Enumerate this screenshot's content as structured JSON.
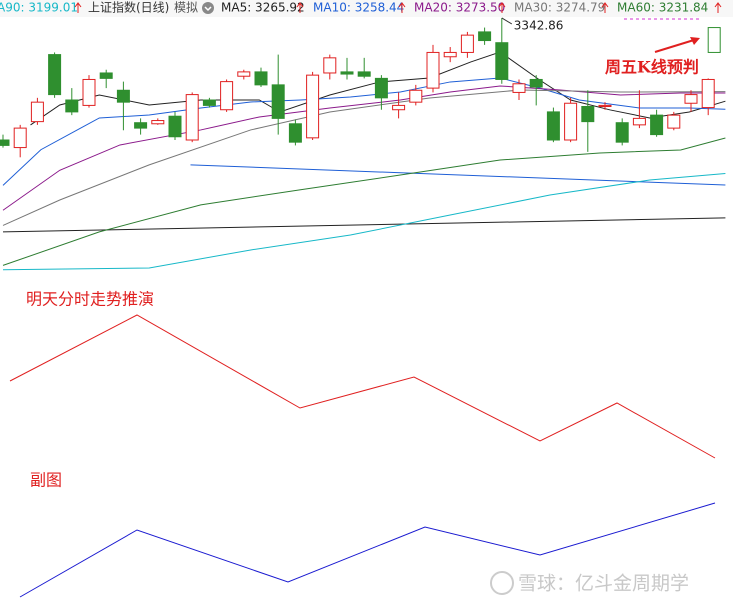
{
  "chart_data": [
    {
      "type": "candlestick",
      "title": "上证指数(日线)",
      "subtitle": "模拟",
      "open": [
        3230,
        3223,
        3247,
        3309,
        3267,
        3262,
        3292,
        3276,
        3246,
        3245,
        3252,
        3230,
        3267,
        3258,
        3289,
        3293,
        3281,
        3245,
        3232,
        3292,
        3293,
        3293,
        3287,
        3258,
        3265,
        3278,
        3307,
        3311,
        3330,
        3320,
        3274,
        3286,
        3256,
        3230,
        3261,
        3261,
        3246,
        3244,
        3253,
        3241,
        3264,
        3260
      ],
      "high": [
        3235,
        3244,
        3269,
        3311,
        3278,
        3290,
        3295,
        3284,
        3250,
        3250,
        3256,
        3274,
        3269,
        3286,
        3295,
        3297,
        3309,
        3249,
        3293,
        3309,
        3306,
        3306,
        3290,
        3274,
        3281,
        3318,
        3316,
        3330,
        3334,
        3342.86,
        3286,
        3290,
        3260,
        3269,
        3276,
        3265,
        3250,
        3276,
        3258,
        3256,
        3276,
        3287
      ],
      "low": [
        3223,
        3214,
        3244,
        3269,
        3253,
        3260,
        3278,
        3239,
        3235,
        3244,
        3230,
        3228,
        3260,
        3256,
        3286,
        3279,
        3235,
        3225,
        3230,
        3286,
        3286,
        3287,
        3258,
        3250,
        3262,
        3274,
        3302,
        3306,
        3318,
        3282,
        3267,
        3262,
        3228,
        3228,
        3219,
        3258,
        3225,
        3241,
        3233,
        3239,
        3256,
        3253
      ],
      "close": [
        3225,
        3241,
        3265,
        3272,
        3256,
        3286,
        3287,
        3265,
        3241,
        3248,
        3233,
        3272,
        3262,
        3284,
        3293,
        3281,
        3250,
        3228,
        3290,
        3306,
        3291,
        3289,
        3269,
        3262,
        3276,
        3311,
        3311,
        3327,
        3322,
        3286,
        3282,
        3279,
        3230,
        3264,
        3247,
        3262,
        3228,
        3250,
        3235,
        3253,
        3272,
        3286
      ],
      "up_color": "#e02020",
      "down_color": "#2f8f2f",
      "xlim": [
        0,
        42
      ],
      "ylim": [
        3082,
        3359.5
      ],
      "prediction": {
        "label": "周五K线预判",
        "open": 3311,
        "close": 3334,
        "color": "#2f8f2f"
      },
      "series": [
        {
          "name": "A90: 3199.01",
          "color": "#17b8c8",
          "x": [
            0,
            8.5,
            14.4,
            20.2,
            26,
            31.8,
            37.6,
            42
          ],
          "values": [
            3110,
            3111.6,
            3128.3,
            3142.1,
            3160.6,
            3179.1,
            3193,
            3199.01
          ]
        },
        {
          "name": "MA5: 3265.92",
          "color": "#222222",
          "x": [
            1.6,
            3.3,
            5.6,
            8.5,
            11.5,
            14.9,
            16.1,
            19,
            21.9,
            24.8,
            27.2,
            28.9,
            31.2,
            33,
            35.3,
            37.6,
            39.9,
            42
          ],
          "values": [
            3243.9,
            3262.4,
            3271.6,
            3262.4,
            3267,
            3267,
            3255.9,
            3271.6,
            3283.7,
            3287.4,
            3302.2,
            3311.4,
            3285.5,
            3267,
            3257.8,
            3250.4,
            3255.9,
            3265.92
          ]
        },
        {
          "name": "MA10: 3258.44",
          "color": "#1f5fd6",
          "x": [
            0,
            2.2,
            5.6,
            8.5,
            11.5,
            14.4,
            17.3,
            20.2,
            23.1,
            26,
            28.9,
            31.2,
            33.5,
            37,
            39.9,
            42
          ],
          "values": [
            3188,
            3221,
            3250.4,
            3253.1,
            3259.6,
            3265.2,
            3267,
            3269.8,
            3274.4,
            3283.7,
            3287.4,
            3278.1,
            3267,
            3259.6,
            3259.6,
            3258.44
          ]
        },
        {
          "name": "MA20: 3273.50",
          "color": "#8b1a8b",
          "x": [
            0,
            3.3,
            6.8,
            11.5,
            14.9,
            19,
            23.1,
            26,
            28.9,
            32.4,
            35.9,
            39.4,
            42
          ],
          "values": [
            3165,
            3202,
            3225.4,
            3239.3,
            3251.3,
            3259.6,
            3267,
            3274.4,
            3280,
            3276.3,
            3271.6,
            3273.5,
            3273.5
          ]
        },
        {
          "name": "MA30: 3274.79",
          "color": "#777777",
          "x": [
            0,
            3.3,
            8.5,
            14.4,
            19,
            24.8,
            30.1,
            35.9,
            42
          ],
          "values": [
            3151,
            3174.5,
            3207,
            3239.3,
            3255.9,
            3268.9,
            3276.3,
            3274.4,
            3274.79
          ]
        },
        {
          "name": "MA60: 3231.84",
          "color": "#2e7d32",
          "x": [
            0,
            5.6,
            11.5,
            17.3,
            23.1,
            28.9,
            34.7,
            39.4,
            42
          ],
          "values": [
            3114,
            3145,
            3170,
            3184,
            3197.6,
            3211.5,
            3218,
            3220.8,
            3231.84
          ]
        }
      ],
      "lines": [
        {
          "color": "#222222",
          "x": [
            0,
            42
          ],
          "values": [
            3145,
            3158
          ]
        },
        {
          "color": "#1f5fd6",
          "x": [
            10.9,
            42
          ],
          "values": [
            3207,
            3188.4
          ]
        }
      ]
    },
    {
      "type": "line",
      "title": "明天分时走势推演",
      "color": "#e02020",
      "x": [
        10,
        137,
        300,
        414,
        540,
        617,
        715
      ],
      "values": [
        89,
        155,
        62,
        93,
        29,
        67,
        12
      ],
      "xlim": [
        0,
        733
      ],
      "ylim": [
        0,
        170
      ]
    },
    {
      "type": "line",
      "title": "副图",
      "color": "#1a1ad0",
      "x": [
        20,
        137,
        288,
        425,
        540,
        715
      ],
      "values": [
        13,
        80,
        28,
        83,
        55,
        107
      ],
      "xlim": [
        0,
        733
      ],
      "ylim": [
        0,
        120
      ]
    }
  ],
  "watermark": "雪球：亿斗金周期学"
}
